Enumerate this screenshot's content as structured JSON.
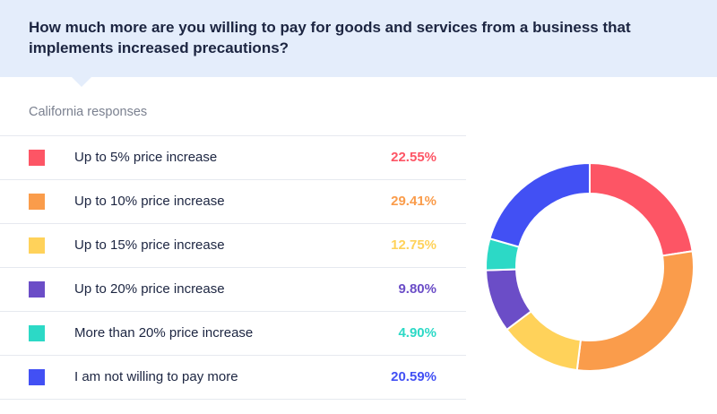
{
  "header": {
    "question": "How much more are you willing to pay for goods and services from a business that implements increased precautions?"
  },
  "subtitle": "California responses",
  "colors": {
    "header_bg": "#e4edfb",
    "text_dark": "#1c2541",
    "text_muted": "#7b8190",
    "divider": "#e6e9ef"
  },
  "chart_data": {
    "type": "pie",
    "variant": "donut",
    "title": "",
    "legend_placement": "left",
    "unit": "%",
    "categories": [
      "Up to 5% price increase",
      "Up to 10% price increase",
      "Up to 15% price increase",
      "Up to 20% price increase",
      "More than 20% price increase",
      "I am not willing to pay more"
    ],
    "values": [
      22.55,
      29.41,
      12.75,
      9.8,
      4.9,
      20.59
    ],
    "value_labels": [
      "22.55%",
      "29.41%",
      "12.75%",
      "9.80%",
      "4.90%",
      "20.59%"
    ],
    "colors": [
      "#fd5565",
      "#fa9c4b",
      "#ffd25a",
      "#6b4dc7",
      "#2cd9c6",
      "#4250f4"
    ],
    "start_angle_deg": 0,
    "direction": "clockwise"
  }
}
